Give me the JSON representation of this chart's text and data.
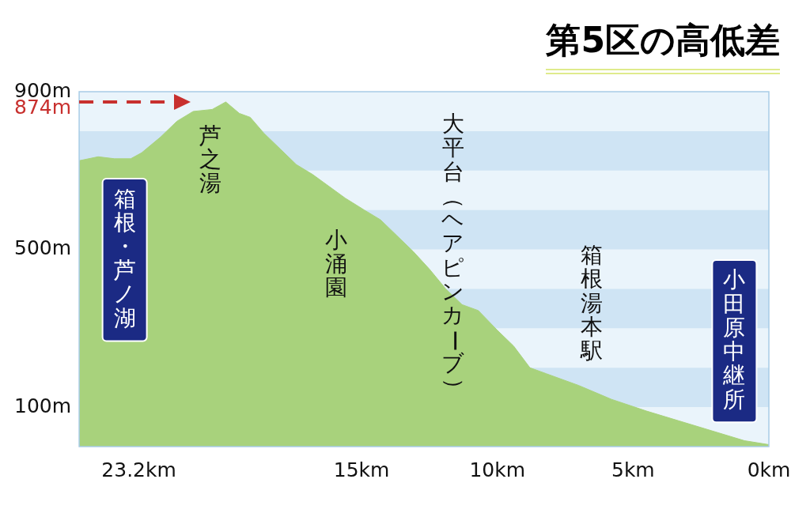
{
  "chart_data": {
    "type": "area",
    "title": "第5区の高低差",
    "x": [
      25.4,
      24.7,
      24.1,
      23.5,
      23.1,
      22.4,
      21.8,
      21.2,
      20.5,
      20.0,
      19.5,
      19.1,
      18.6,
      18.0,
      17.4,
      16.8,
      16.2,
      15.6,
      14.9,
      14.3,
      13.7,
      13.1,
      12.5,
      11.9,
      11.3,
      10.7,
      10.0,
      9.4,
      8.8,
      8.2,
      7.0,
      5.8,
      4.5,
      3.3,
      2.1,
      0.9,
      0
    ],
    "series": [
      {
        "color": "#a8d27c",
        "values": [
          725,
          735,
          730,
          730,
          745,
          785,
          825,
          850,
          855,
          874,
          845,
          835,
          795,
          755,
          715,
          690,
          660,
          630,
          600,
          575,
          535,
          495,
          450,
          400,
          360,
          345,
          295,
          255,
          200,
          185,
          155,
          120,
          90,
          65,
          40,
          15,
          5
        ]
      }
    ],
    "xlim": [
      25.4,
      0
    ],
    "xticks": [
      {
        "value": 23.2,
        "label": "23.2km"
      },
      {
        "value": 15,
        "label": "15km"
      },
      {
        "value": 10,
        "label": "10km"
      },
      {
        "value": 5,
        "label": "5km"
      },
      {
        "value": 0,
        "label": "0km"
      }
    ],
    "ylim": [
      0,
      900
    ],
    "yticks": [
      {
        "value": 100,
        "label": "100m"
      },
      {
        "value": 500,
        "label": "500m"
      },
      {
        "value": 900,
        "label": "900m"
      }
    ],
    "bands": [
      {
        "axis": "y",
        "from": 700,
        "to": 800,
        "color": "#cfe4f4"
      },
      {
        "axis": "y",
        "from": 500,
        "to": 600,
        "color": "#cfe4f4"
      },
      {
        "axis": "y",
        "from": 300,
        "to": 400,
        "color": "#cfe4f4"
      },
      {
        "axis": "y",
        "from": 100,
        "to": 200,
        "color": "#cfe4f4"
      }
    ],
    "ref_lines": [
      {
        "axis": "y",
        "value": 874,
        "label": "874m",
        "color": "#c8302e",
        "line_style": "dashed"
      }
    ],
    "annotations": [
      "箱根・芦ノ湖",
      "芦之湯",
      "小涌園",
      "大平台（ヘアピンカーブ）",
      "箱根湯本駅",
      "小田原中継所"
    ]
  }
}
